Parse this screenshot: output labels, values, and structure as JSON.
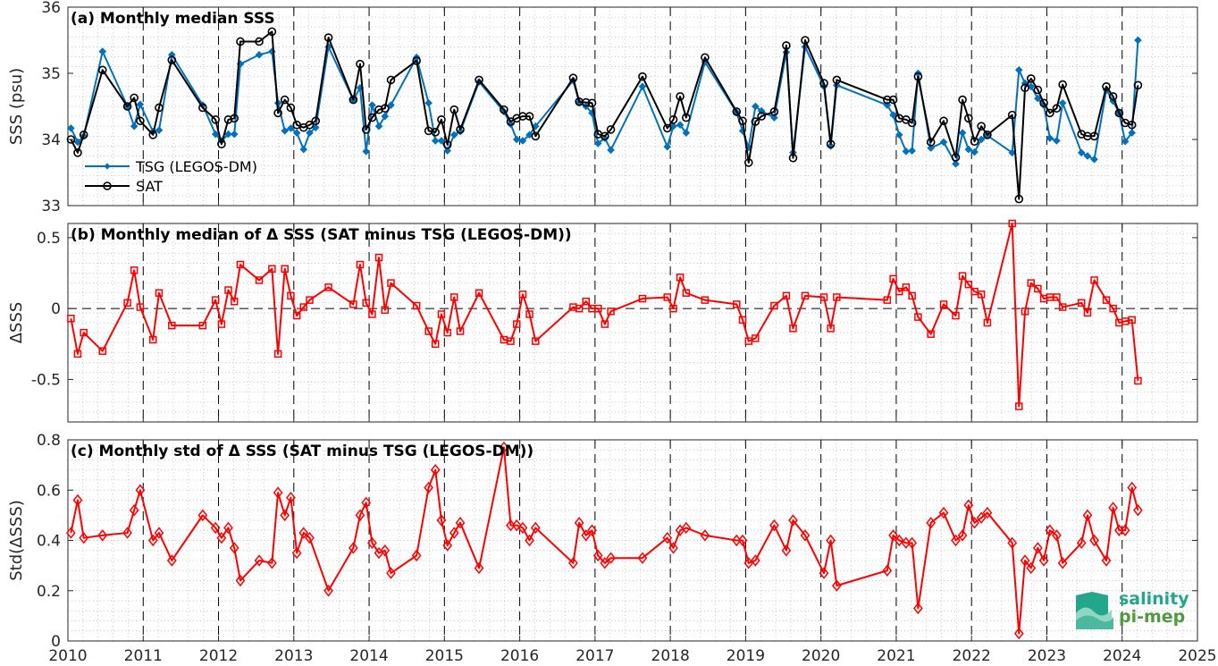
{
  "colors": {
    "tsg": "#0072BD",
    "sat": "#000000",
    "delta": "#FF0000",
    "grid": "#b5b5b5",
    "dash": "#000000",
    "logo_teal": "#22A68C",
    "logo_green": "#4C9C3C"
  },
  "logo": {
    "line1": "salinity",
    "line2": "pi-mep"
  },
  "chart_data": [
    {
      "type": "line",
      "title": "(a) Monthly median SSS",
      "xlabel": "",
      "ylabel": "SSS (psu)",
      "xlim": [
        2010,
        2025
      ],
      "ylim": [
        33,
        36
      ],
      "yticks": [
        33,
        34,
        35,
        36
      ],
      "xticks": [
        2010,
        2011,
        2012,
        2013,
        2014,
        2015,
        2016,
        2017,
        2018,
        2019,
        2020,
        2021,
        2022,
        2023,
        2024,
        2025
      ],
      "grid": "dotted",
      "legend_position": "bottom-left",
      "series": [
        {
          "name": "TSG (LEGOS-DM)",
          "marker": "diamond",
          "color": "#0072BD",
          "x": [
            2010.04,
            2010.13,
            2010.21,
            2010.46,
            2010.79,
            2010.88,
            2010.96,
            2011.13,
            2011.21,
            2011.38,
            2011.79,
            2011.96,
            2012.04,
            2012.13,
            2012.21,
            2012.29,
            2012.54,
            2012.71,
            2012.79,
            2012.88,
            2012.96,
            2013.04,
            2013.13,
            2013.21,
            2013.29,
            2013.46,
            2013.79,
            2013.88,
            2013.96,
            2014.04,
            2014.13,
            2014.21,
            2014.29,
            2014.63,
            2014.79,
            2014.88,
            2014.96,
            2015.04,
            2015.13,
            2015.21,
            2015.46,
            2015.79,
            2015.88,
            2015.96,
            2016.04,
            2016.13,
            2016.21,
            2016.71,
            2016.79,
            2016.88,
            2016.96,
            2017.04,
            2017.13,
            2017.21,
            2017.63,
            2017.96,
            2018.04,
            2018.13,
            2018.21,
            2018.46,
            2018.88,
            2018.96,
            2019.04,
            2019.13,
            2019.21,
            2019.38,
            2019.54,
            2019.63,
            2019.79,
            2020.04,
            2020.13,
            2020.21,
            2020.88,
            2020.96,
            2021.04,
            2021.13,
            2021.21,
            2021.29,
            2021.46,
            2021.63,
            2021.79,
            2021.88,
            2021.96,
            2022.04,
            2022.13,
            2022.21,
            2022.54,
            2022.63,
            2022.71,
            2022.79,
            2022.88,
            2022.96,
            2023.04,
            2023.13,
            2023.21,
            2023.46,
            2023.54,
            2023.63,
            2023.79,
            2023.88,
            2023.96,
            2024.04,
            2024.13,
            2024.21
          ],
          "y": [
            34.17,
            33.96,
            34.05,
            35.33,
            34.5,
            34.2,
            34.53,
            34.12,
            34.14,
            35.28,
            34.52,
            34.08,
            33.98,
            34.08,
            34.08,
            35.14,
            35.28,
            35.33,
            34.55,
            34.13,
            34.17,
            34.1,
            33.85,
            34.1,
            34.18,
            35.4,
            34.6,
            34.78,
            33.82,
            34.52,
            34.2,
            34.35,
            34.52,
            35.24,
            34.55,
            33.98,
            33.98,
            33.83,
            34.07,
            34.12,
            34.87,
            34.42,
            34.23,
            34.0,
            33.98,
            34.07,
            34.2,
            34.89,
            34.56,
            34.5,
            34.4,
            33.94,
            34.02,
            33.84,
            34.8,
            33.89,
            34.2,
            34.22,
            34.1,
            35.17,
            34.41,
            34.13,
            33.88,
            34.5,
            34.43,
            34.33,
            35.32,
            33.8,
            35.4,
            34.8,
            33.9,
            34.82,
            34.52,
            34.37,
            34.07,
            33.82,
            33.83,
            35.0,
            33.87,
            33.96,
            33.63,
            34.1,
            33.85,
            33.81,
            34.0,
            34.06,
            33.8,
            35.05,
            34.85,
            34.8,
            34.62,
            34.52,
            34.02,
            33.98,
            34.55,
            33.8,
            33.75,
            33.7,
            34.75,
            34.58,
            34.4,
            33.97,
            34.1,
            35.5
          ]
        },
        {
          "name": "SAT",
          "marker": "circle",
          "color": "#000000",
          "x": [
            2010.04,
            2010.13,
            2010.21,
            2010.46,
            2010.79,
            2010.88,
            2010.96,
            2011.13,
            2011.21,
            2011.38,
            2011.79,
            2011.96,
            2012.04,
            2012.13,
            2012.21,
            2012.29,
            2012.54,
            2012.71,
            2012.79,
            2012.88,
            2012.96,
            2013.04,
            2013.13,
            2013.21,
            2013.29,
            2013.46,
            2013.79,
            2013.88,
            2013.96,
            2014.04,
            2014.13,
            2014.21,
            2014.29,
            2014.63,
            2014.79,
            2014.88,
            2014.96,
            2015.04,
            2015.13,
            2015.21,
            2015.46,
            2015.79,
            2015.88,
            2015.96,
            2016.04,
            2016.13,
            2016.21,
            2016.71,
            2016.79,
            2016.88,
            2016.96,
            2017.04,
            2017.13,
            2017.21,
            2017.63,
            2017.96,
            2018.04,
            2018.13,
            2018.21,
            2018.46,
            2018.88,
            2018.96,
            2019.04,
            2019.13,
            2019.21,
            2019.38,
            2019.54,
            2019.63,
            2019.79,
            2020.04,
            2020.13,
            2020.21,
            2020.88,
            2020.96,
            2021.04,
            2021.13,
            2021.21,
            2021.29,
            2021.46,
            2021.63,
            2021.79,
            2021.88,
            2021.96,
            2022.04,
            2022.13,
            2022.21,
            2022.54,
            2022.63,
            2022.71,
            2022.79,
            2022.88,
            2022.96,
            2023.04,
            2023.13,
            2023.21,
            2023.46,
            2023.54,
            2023.63,
            2023.79,
            2023.88,
            2023.96,
            2024.04,
            2024.13,
            2024.21
          ],
          "y": [
            34.0,
            33.8,
            34.07,
            35.05,
            34.5,
            34.63,
            34.28,
            34.07,
            34.48,
            35.2,
            34.48,
            34.3,
            33.93,
            34.3,
            34.32,
            35.48,
            35.48,
            35.63,
            34.4,
            34.6,
            34.48,
            34.22,
            34.18,
            34.22,
            34.28,
            35.54,
            34.6,
            35.14,
            34.15,
            34.33,
            34.45,
            34.47,
            34.9,
            35.19,
            34.13,
            34.11,
            34.3,
            33.92,
            34.45,
            34.15,
            34.9,
            34.45,
            34.27,
            34.32,
            34.35,
            34.35,
            34.05,
            34.93,
            34.57,
            34.56,
            34.55,
            34.08,
            34.05,
            34.15,
            34.95,
            34.17,
            34.3,
            34.65,
            34.33,
            35.24,
            34.42,
            34.28,
            33.65,
            34.27,
            34.35,
            34.42,
            35.42,
            33.72,
            35.5,
            34.85,
            33.93,
            34.9,
            34.6,
            34.6,
            34.32,
            34.3,
            34.25,
            34.95,
            33.96,
            34.28,
            33.73,
            34.6,
            34.32,
            33.97,
            34.2,
            34.07,
            34.37,
            33.1,
            34.78,
            34.92,
            34.75,
            34.55,
            34.4,
            34.47,
            34.83,
            34.08,
            34.05,
            34.05,
            34.8,
            34.65,
            34.4,
            34.25,
            34.22,
            34.82
          ]
        }
      ]
    },
    {
      "type": "line",
      "title": "(b) Monthly median of Δ SSS (SAT minus TSG (LEGOS-DM))",
      "xlabel": "",
      "ylabel": "ΔSSS",
      "xlim": [
        2010,
        2025
      ],
      "ylim": [
        -0.8,
        0.6
      ],
      "yticks": [
        -0.5,
        0,
        0.5
      ],
      "ytick_labels": [
        "-0.5",
        "0",
        "0.5"
      ],
      "grid": "dotted",
      "series": [
        {
          "marker": "square",
          "color": "#FF0000",
          "x": [
            2010.04,
            2010.13,
            2010.21,
            2010.46,
            2010.79,
            2010.88,
            2010.96,
            2011.13,
            2011.21,
            2011.38,
            2011.79,
            2011.96,
            2012.04,
            2012.13,
            2012.21,
            2012.29,
            2012.54,
            2012.71,
            2012.79,
            2012.88,
            2012.96,
            2013.04,
            2013.13,
            2013.21,
            2013.46,
            2013.79,
            2013.88,
            2013.96,
            2014.04,
            2014.13,
            2014.21,
            2014.29,
            2014.63,
            2014.79,
            2014.88,
            2014.96,
            2015.04,
            2015.13,
            2015.21,
            2015.46,
            2015.79,
            2015.88,
            2015.96,
            2016.04,
            2016.13,
            2016.21,
            2016.71,
            2016.79,
            2016.88,
            2016.96,
            2017.04,
            2017.13,
            2017.21,
            2017.63,
            2017.96,
            2018.04,
            2018.13,
            2018.21,
            2018.46,
            2018.88,
            2018.96,
            2019.04,
            2019.13,
            2019.38,
            2019.54,
            2019.63,
            2019.79,
            2020.04,
            2020.13,
            2020.21,
            2020.88,
            2020.96,
            2021.04,
            2021.13,
            2021.21,
            2021.29,
            2021.46,
            2021.63,
            2021.79,
            2021.88,
            2021.96,
            2022.04,
            2022.13,
            2022.21,
            2022.54,
            2022.63,
            2022.71,
            2022.79,
            2022.88,
            2022.96,
            2023.04,
            2023.13,
            2023.21,
            2023.46,
            2023.54,
            2023.63,
            2023.79,
            2023.88,
            2023.96,
            2024.04,
            2024.13,
            2024.21
          ],
          "y": [
            -0.07,
            -0.32,
            -0.17,
            -0.3,
            0.04,
            0.27,
            0.01,
            -0.22,
            0.11,
            -0.12,
            -0.12,
            0.06,
            -0.11,
            0.13,
            0.05,
            0.31,
            0.2,
            0.28,
            -0.32,
            0.28,
            0.09,
            -0.05,
            0.01,
            0.06,
            0.15,
            0.03,
            0.31,
            0.04,
            -0.04,
            0.36,
            -0.01,
            0.18,
            0.02,
            -0.16,
            -0.25,
            -0.04,
            -0.17,
            0.08,
            -0.16,
            0.11,
            -0.22,
            -0.23,
            -0.11,
            0.1,
            -0.04,
            -0.23,
            0.01,
            0.0,
            0.05,
            0.0,
            0.0,
            -0.11,
            -0.02,
            0.07,
            0.08,
            0.0,
            0.22,
            0.11,
            0.06,
            0.03,
            -0.08,
            -0.23,
            -0.21,
            0.02,
            0.09,
            -0.14,
            0.09,
            0.08,
            -0.14,
            0.08,
            0.06,
            0.21,
            0.12,
            0.15,
            0.09,
            -0.06,
            -0.18,
            0.03,
            -0.05,
            0.23,
            0.17,
            0.12,
            0.1,
            -0.1,
            0.6,
            -0.69,
            -0.02,
            0.18,
            0.14,
            0.07,
            0.08,
            0.08,
            0.01,
            0.04,
            -0.03,
            0.2,
            0.06,
            0.0,
            -0.1,
            -0.09,
            -0.08,
            -0.51
          ]
        }
      ]
    },
    {
      "type": "line",
      "title": "(c) Monthly std of Δ SSS (SAT minus TSG (LEGOS-DM))",
      "xlabel": "",
      "ylabel": "Std(ΔSSS)",
      "xlim": [
        2010,
        2025
      ],
      "ylim": [
        0,
        0.8
      ],
      "yticks": [
        0,
        0.2,
        0.4,
        0.6,
        0.8
      ],
      "ytick_labels": [
        "0",
        "0.2",
        "0.4",
        "0.6",
        "0.8"
      ],
      "xtick_labels": [
        "2010",
        "2011",
        "2012",
        "2013",
        "2014",
        "2015",
        "2016",
        "2017",
        "2018",
        "2019",
        "2020",
        "2021",
        "2022",
        "2023",
        "2024",
        "2025"
      ],
      "grid": "dotted",
      "series": [
        {
          "marker": "diamond",
          "color": "#FF0000",
          "x": [
            2010.04,
            2010.13,
            2010.21,
            2010.46,
            2010.79,
            2010.88,
            2010.96,
            2011.13,
            2011.21,
            2011.38,
            2011.79,
            2011.96,
            2012.04,
            2012.13,
            2012.21,
            2012.29,
            2012.54,
            2012.71,
            2012.79,
            2012.88,
            2012.96,
            2013.04,
            2013.13,
            2013.21,
            2013.46,
            2013.79,
            2013.88,
            2013.96,
            2014.04,
            2014.13,
            2014.21,
            2014.29,
            2014.63,
            2014.79,
            2014.88,
            2014.96,
            2015.04,
            2015.13,
            2015.21,
            2015.46,
            2015.79,
            2015.88,
            2015.96,
            2016.04,
            2016.13,
            2016.21,
            2016.71,
            2016.79,
            2016.88,
            2016.96,
            2017.04,
            2017.13,
            2017.21,
            2017.63,
            2017.96,
            2018.04,
            2018.13,
            2018.21,
            2018.46,
            2018.88,
            2018.96,
            2019.04,
            2019.13,
            2019.38,
            2019.54,
            2019.63,
            2019.79,
            2020.04,
            2020.13,
            2020.21,
            2020.88,
            2020.96,
            2021.04,
            2021.13,
            2021.21,
            2021.29,
            2021.46,
            2021.63,
            2021.79,
            2021.88,
            2021.96,
            2022.04,
            2022.13,
            2022.21,
            2022.54,
            2022.63,
            2022.71,
            2022.79,
            2022.88,
            2022.96,
            2023.04,
            2023.13,
            2023.21,
            2023.46,
            2023.54,
            2023.63,
            2023.79,
            2023.88,
            2023.96,
            2024.04,
            2024.13,
            2024.21
          ],
          "y": [
            0.43,
            0.56,
            0.41,
            0.42,
            0.43,
            0.52,
            0.6,
            0.4,
            0.43,
            0.32,
            0.5,
            0.45,
            0.41,
            0.45,
            0.37,
            0.24,
            0.32,
            0.31,
            0.59,
            0.5,
            0.57,
            0.35,
            0.43,
            0.41,
            0.2,
            0.37,
            0.5,
            0.55,
            0.39,
            0.35,
            0.36,
            0.27,
            0.34,
            0.61,
            0.68,
            0.48,
            0.38,
            0.43,
            0.47,
            0.29,
            0.77,
            0.46,
            0.46,
            0.45,
            0.4,
            0.45,
            0.31,
            0.47,
            0.42,
            0.44,
            0.34,
            0.31,
            0.33,
            0.33,
            0.41,
            0.37,
            0.44,
            0.45,
            0.42,
            0.4,
            0.4,
            0.31,
            0.32,
            0.46,
            0.36,
            0.48,
            0.42,
            0.27,
            0.4,
            0.22,
            0.28,
            0.42,
            0.4,
            0.39,
            0.39,
            0.13,
            0.47,
            0.51,
            0.4,
            0.42,
            0.54,
            0.47,
            0.49,
            0.51,
            0.39,
            0.03,
            0.32,
            0.29,
            0.37,
            0.32,
            0.44,
            0.42,
            0.31,
            0.39,
            0.5,
            0.4,
            0.32,
            0.53,
            0.44,
            0.44,
            0.61,
            0.52
          ]
        }
      ]
    }
  ]
}
